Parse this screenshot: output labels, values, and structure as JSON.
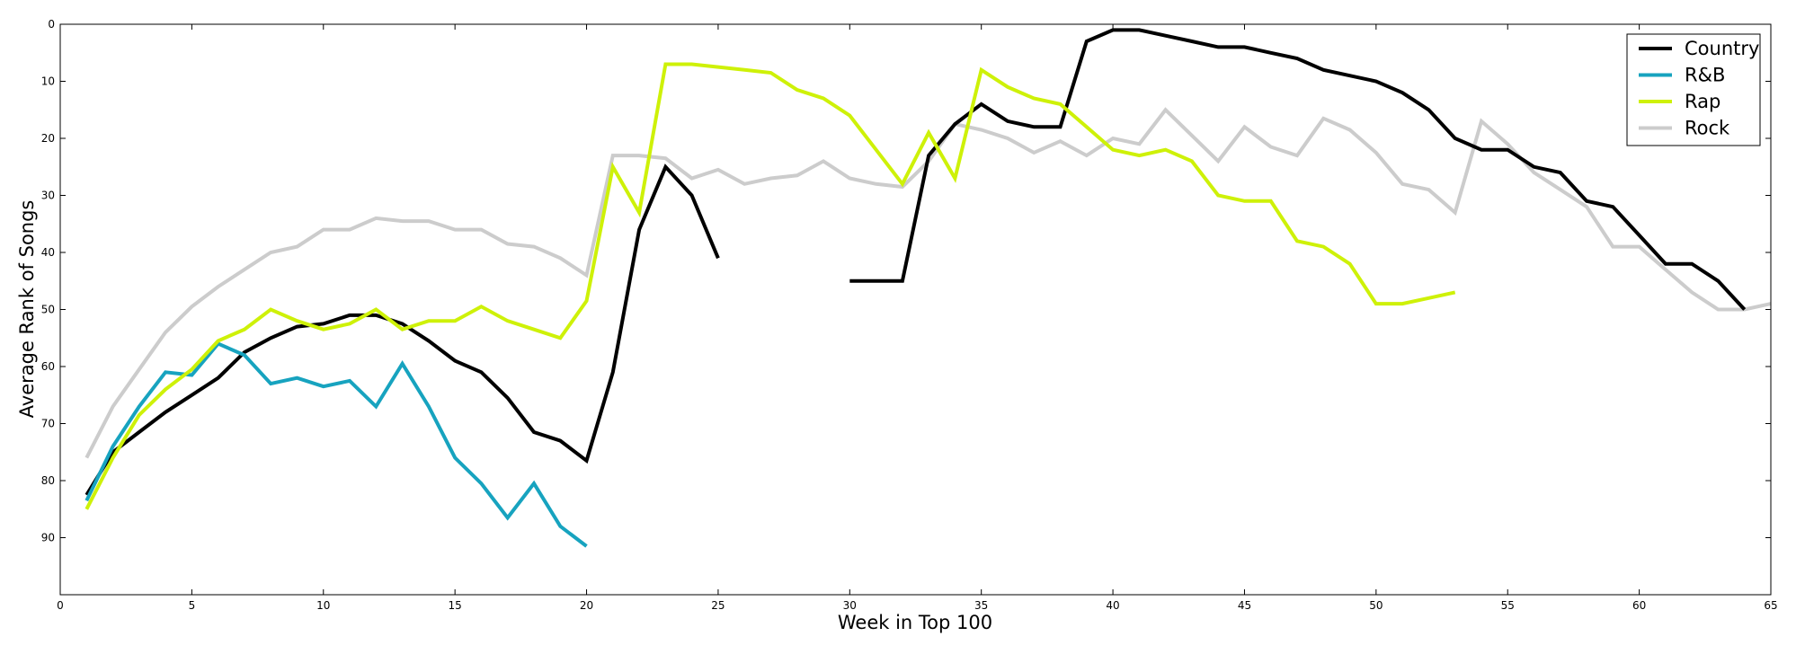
{
  "chart_data": {
    "type": "line",
    "xlabel": "Week in Top 100",
    "ylabel": "Average Rank of Songs",
    "xlim": [
      0,
      65
    ],
    "ylim": [
      100,
      0
    ],
    "y_inverted": true,
    "x_ticks": [
      0,
      5,
      10,
      15,
      20,
      25,
      30,
      35,
      40,
      45,
      50,
      55,
      60,
      65
    ],
    "y_ticks": [
      0,
      10,
      20,
      30,
      40,
      50,
      60,
      70,
      80,
      90
    ],
    "grid": false,
    "legend_position": "top-right",
    "series": [
      {
        "name": "Country",
        "color": "#000000",
        "segments": [
          [
            [
              1,
              82.5
            ],
            [
              2,
              75
            ],
            [
              3,
              71.5
            ],
            [
              4,
              68
            ],
            [
              5,
              65
            ],
            [
              6,
              62
            ],
            [
              7,
              57.5
            ],
            [
              8,
              55
            ],
            [
              9,
              53
            ],
            [
              10,
              52.5
            ],
            [
              11,
              51
            ],
            [
              12,
              51
            ],
            [
              13,
              52.5
            ],
            [
              14,
              55.5
            ],
            [
              15,
              59
            ],
            [
              16,
              61
            ],
            [
              17,
              65.5
            ],
            [
              18,
              71.5
            ],
            [
              19,
              73
            ],
            [
              20,
              76.5
            ],
            [
              21,
              61
            ],
            [
              22,
              36
            ],
            [
              23,
              25
            ],
            [
              24,
              30
            ],
            [
              25,
              41
            ]
          ],
          [
            [
              30,
              45
            ],
            [
              31,
              45
            ],
            [
              32,
              45
            ],
            [
              33,
              23
            ],
            [
              34,
              17.5
            ],
            [
              35,
              14
            ],
            [
              36,
              17
            ],
            [
              37,
              18
            ],
            [
              38,
              18
            ],
            [
              39,
              3
            ],
            [
              40,
              1
            ],
            [
              41,
              1
            ],
            [
              42,
              2
            ],
            [
              43,
              3
            ],
            [
              44,
              4
            ],
            [
              45,
              4
            ],
            [
              46,
              5
            ],
            [
              47,
              6
            ],
            [
              48,
              8
            ],
            [
              49,
              9
            ],
            [
              50,
              10
            ],
            [
              51,
              12
            ],
            [
              52,
              15
            ],
            [
              53,
              20
            ],
            [
              54,
              22
            ],
            [
              55,
              22
            ],
            [
              56,
              25
            ],
            [
              57,
              26
            ],
            [
              58,
              31
            ],
            [
              59,
              32
            ],
            [
              60,
              37
            ],
            [
              61,
              42
            ],
            [
              62,
              42
            ],
            [
              63,
              45
            ],
            [
              64,
              50
            ]
          ]
        ]
      },
      {
        "name": "R&B",
        "color": "#17a3bf",
        "segments": [
          [
            [
              1,
              83.5
            ],
            [
              2,
              74
            ],
            [
              3,
              67
            ],
            [
              4,
              61
            ],
            [
              5,
              61.5
            ],
            [
              6,
              56
            ],
            [
              7,
              58
            ],
            [
              8,
              63
            ],
            [
              9,
              62
            ],
            [
              10,
              63.5
            ],
            [
              11,
              62.5
            ],
            [
              12,
              67
            ],
            [
              13,
              59.5
            ],
            [
              14,
              67
            ],
            [
              15,
              76
            ],
            [
              16,
              80.5
            ],
            [
              17,
              86.5
            ],
            [
              18,
              80.5
            ],
            [
              19,
              88
            ],
            [
              20,
              91.5
            ]
          ]
        ]
      },
      {
        "name": "Rap",
        "color": "#cef108",
        "segments": [
          [
            [
              1,
              85
            ],
            [
              2,
              76
            ],
            [
              3,
              68.5
            ],
            [
              4,
              64
            ],
            [
              5,
              60.5
            ],
            [
              6,
              55.5
            ],
            [
              7,
              53.5
            ],
            [
              8,
              50
            ],
            [
              9,
              52
            ],
            [
              10,
              53.5
            ],
            [
              11,
              52.5
            ],
            [
              12,
              50
            ],
            [
              13,
              53.5
            ],
            [
              14,
              52
            ],
            [
              15,
              52
            ],
            [
              16,
              49.5
            ],
            [
              17,
              52
            ],
            [
              18,
              53.5
            ],
            [
              19,
              55
            ],
            [
              20,
              48.5
            ],
            [
              21,
              25
            ],
            [
              22,
              33
            ],
            [
              23,
              7
            ],
            [
              24,
              7
            ],
            [
              25,
              7.5
            ],
            [
              26,
              8
            ],
            [
              27,
              8.5
            ],
            [
              28,
              11.5
            ],
            [
              29,
              13
            ],
            [
              30,
              16
            ],
            [
              31,
              22
            ],
            [
              32,
              28
            ],
            [
              33,
              19
            ],
            [
              34,
              27
            ],
            [
              35,
              8
            ],
            [
              36,
              11
            ],
            [
              37,
              13
            ],
            [
              38,
              14
            ],
            [
              39,
              18
            ],
            [
              40,
              22
            ],
            [
              41,
              23
            ],
            [
              42,
              22
            ],
            [
              43,
              24
            ],
            [
              44,
              30
            ],
            [
              45,
              31
            ],
            [
              46,
              31
            ],
            [
              47,
              38
            ],
            [
              48,
              39
            ],
            [
              49,
              42
            ],
            [
              50,
              49
            ],
            [
              51,
              49
            ],
            [
              52,
              48
            ],
            [
              53,
              47
            ]
          ]
        ]
      },
      {
        "name": "Rock",
        "color": "#cccccc",
        "segments": [
          [
            [
              1,
              76
            ],
            [
              2,
              67
            ],
            [
              3,
              60.5
            ],
            [
              4,
              54
            ],
            [
              5,
              49.5
            ],
            [
              6,
              46
            ],
            [
              7,
              43
            ],
            [
              8,
              40
            ],
            [
              9,
              39
            ],
            [
              10,
              36
            ],
            [
              11,
              36
            ],
            [
              12,
              34
            ],
            [
              13,
              34.5
            ],
            [
              14,
              34.5
            ],
            [
              15,
              36
            ],
            [
              16,
              36
            ],
            [
              17,
              38.5
            ],
            [
              18,
              39
            ],
            [
              19,
              41
            ],
            [
              20,
              44
            ],
            [
              21,
              23
            ],
            [
              22,
              23
            ],
            [
              23,
              23.5
            ],
            [
              24,
              27
            ],
            [
              25,
              25.5
            ],
            [
              26,
              28
            ],
            [
              27,
              27
            ],
            [
              28,
              26.5
            ],
            [
              29,
              24
            ],
            [
              30,
              27
            ],
            [
              31,
              28
            ],
            [
              32,
              28.5
            ],
            [
              33,
              24
            ],
            [
              34,
              17.5
            ],
            [
              35,
              18.5
            ],
            [
              36,
              20
            ],
            [
              37,
              22.5
            ],
            [
              38,
              20.5
            ],
            [
              39,
              23
            ],
            [
              40,
              20
            ],
            [
              41,
              21
            ],
            [
              42,
              15
            ],
            [
              43,
              19.5
            ],
            [
              44,
              24
            ],
            [
              45,
              18
            ],
            [
              46,
              21.5
            ],
            [
              47,
              23
            ],
            [
              48,
              16.5
            ],
            [
              49,
              18.5
            ],
            [
              50,
              22.5
            ],
            [
              51,
              28
            ],
            [
              52,
              29
            ],
            [
              53,
              33
            ],
            [
              54,
              17
            ],
            [
              55,
              21
            ],
            [
              56,
              26
            ],
            [
              57,
              29
            ],
            [
              58,
              32
            ],
            [
              59,
              39
            ],
            [
              60,
              39
            ],
            [
              61,
              43
            ],
            [
              62,
              47
            ],
            [
              63,
              50
            ],
            [
              64,
              50
            ],
            [
              65,
              49
            ]
          ]
        ]
      }
    ]
  }
}
